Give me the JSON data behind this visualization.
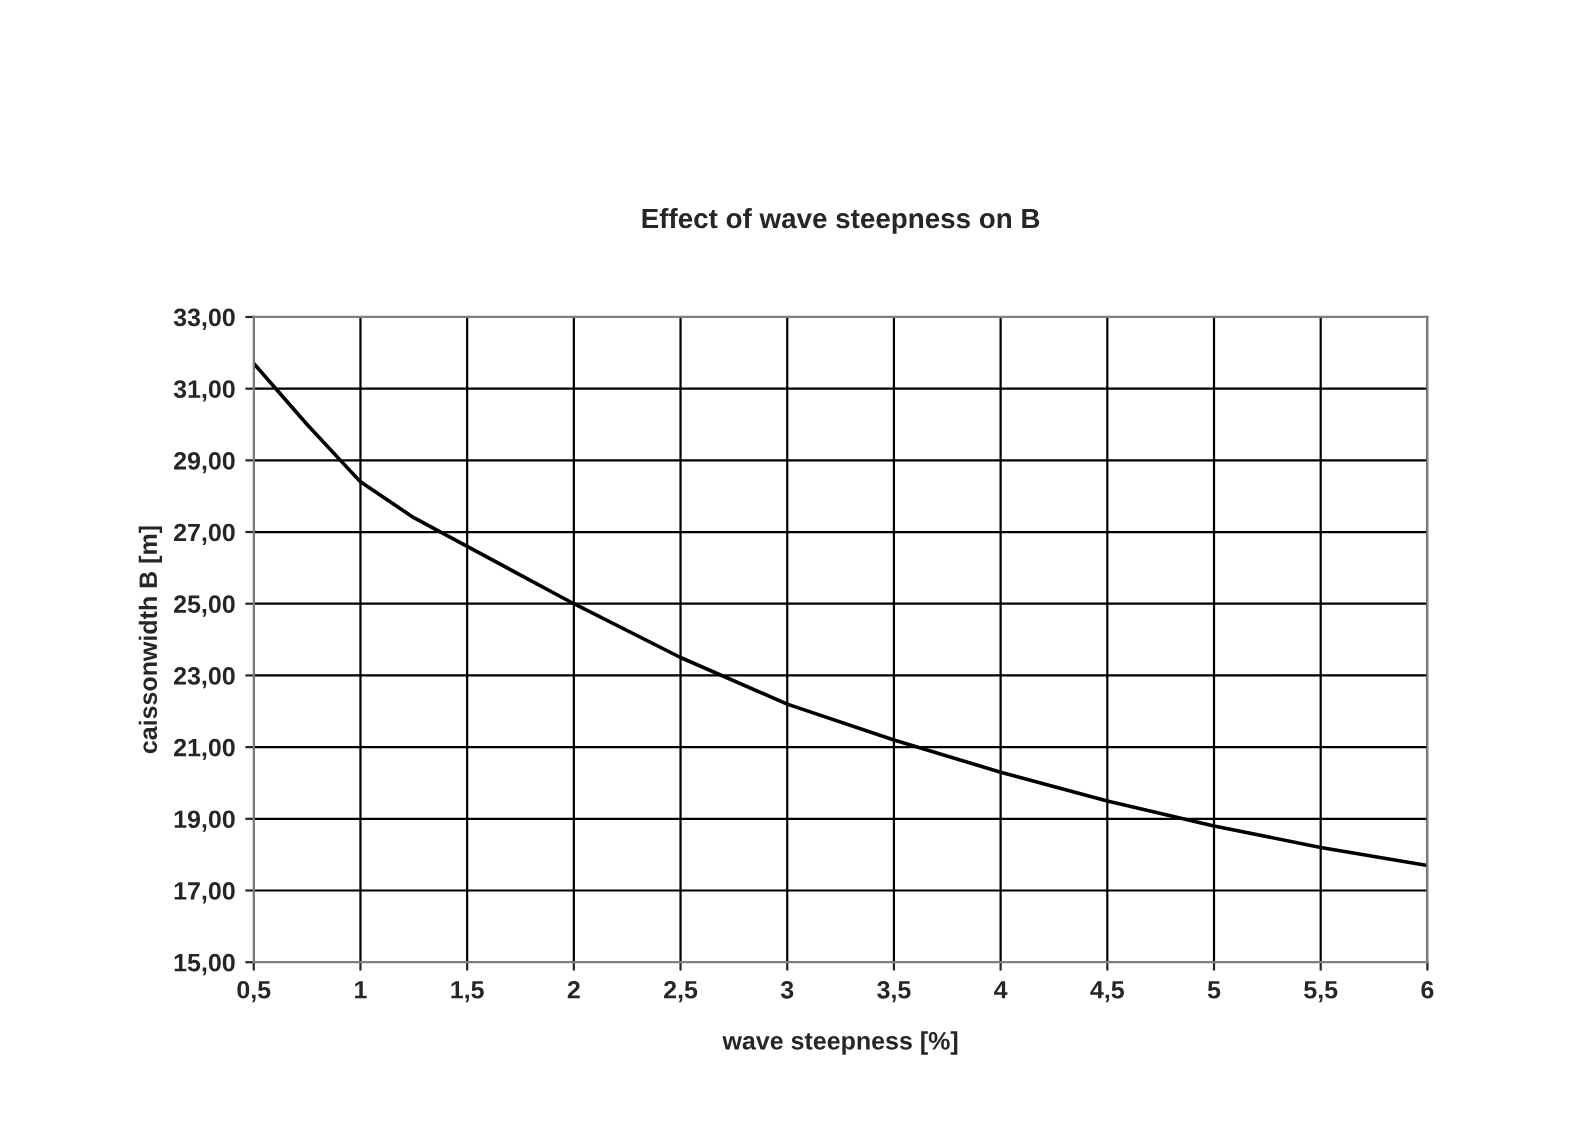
{
  "chart_data": {
    "type": "line",
    "title": "Effect of wave steepness on B",
    "xlabel": "wave steepness [%]",
    "ylabel": "caissonwidth B [m]",
    "x": [
      0.5,
      0.75,
      1,
      1.25,
      1.5,
      2,
      2.5,
      3,
      3.5,
      4,
      4.5,
      5,
      5.5,
      6
    ],
    "series": [
      {
        "color": "#000000",
        "values": [
          31.7,
          30.0,
          28.4,
          27.4,
          26.6,
          25.0,
          23.5,
          22.2,
          21.2,
          20.3,
          19.5,
          18.8,
          18.2,
          17.7
        ]
      }
    ],
    "xlim": [
      0.5,
      6
    ],
    "xticks": [
      {
        "value": 0.5,
        "label": "0,5"
      },
      1,
      {
        "value": 1.5,
        "label": "1,5"
      },
      2,
      {
        "value": 2.5,
        "label": "2,5"
      },
      3,
      {
        "value": 3.5,
        "label": "3,5"
      },
      4,
      {
        "value": 4.5,
        "label": "4,5"
      },
      5,
      {
        "value": 5.5,
        "label": "5,5"
      },
      6
    ],
    "ylim": [
      15,
      33
    ],
    "yticks": [
      {
        "value": 15,
        "label": "15,00"
      },
      {
        "value": 17,
        "label": "17,00"
      },
      {
        "value": 19,
        "label": "19,00"
      },
      {
        "value": 21,
        "label": "21,00"
      },
      {
        "value": 23,
        "label": "23,00"
      },
      {
        "value": 25,
        "label": "25,00"
      },
      {
        "value": 27,
        "label": "27,00"
      },
      {
        "value": 29,
        "label": "29,00"
      },
      {
        "value": 31,
        "label": "31,00"
      },
      {
        "value": 33,
        "label": "33,00"
      }
    ],
    "grid": true,
    "marker": "none",
    "line_style": "solid",
    "legend": false
  }
}
